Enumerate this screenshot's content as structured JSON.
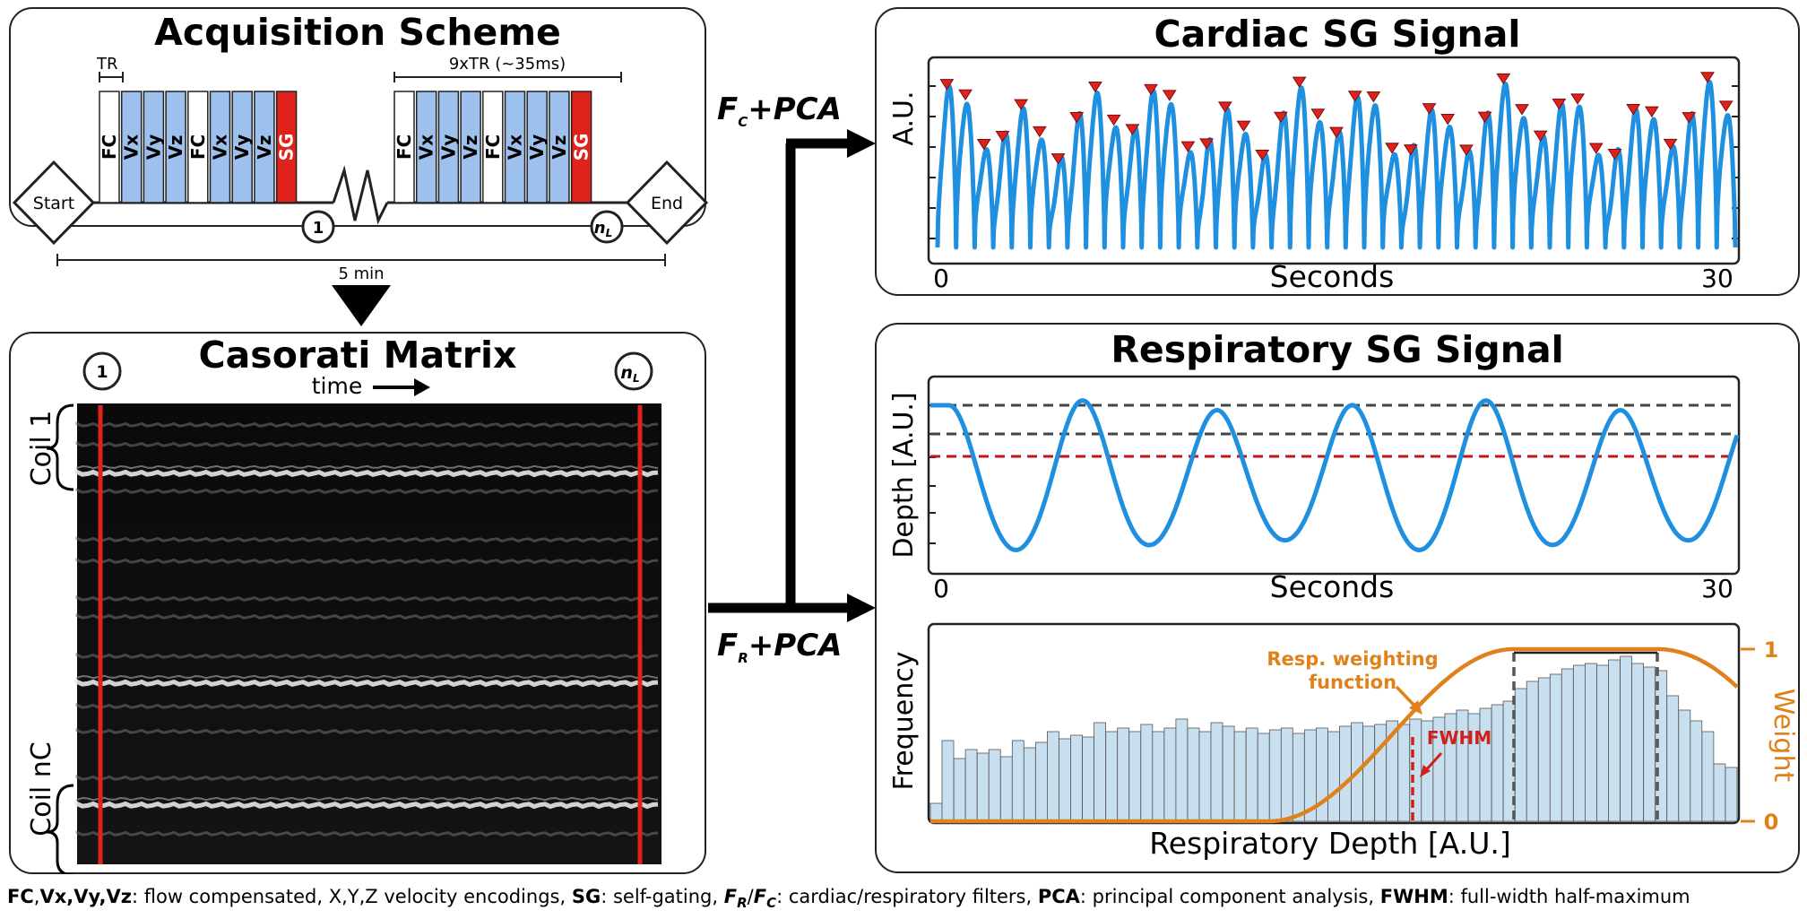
{
  "acquisition": {
    "title": "Acquisition Scheme",
    "tr_label": "TR",
    "nine_tr_label": "9xTR (~35ms)",
    "start_label": "Start",
    "end_label": "End",
    "duration_label": "5 min",
    "marker_first": "1",
    "marker_last_base": "n",
    "marker_last_sub": "L",
    "blocks_group1": [
      {
        "label": "FC",
        "kind": "fc"
      },
      {
        "label": "Vx",
        "kind": "v"
      },
      {
        "label": "Vy",
        "kind": "v"
      },
      {
        "label": "Vz",
        "kind": "v"
      },
      {
        "label": "FC",
        "kind": "fc"
      },
      {
        "label": "Vx",
        "kind": "v"
      },
      {
        "label": "Vy",
        "kind": "v"
      },
      {
        "label": "Vz",
        "kind": "v"
      },
      {
        "label": "SG",
        "kind": "sg"
      }
    ],
    "blocks_group2": [
      {
        "label": "FC",
        "kind": "fc"
      },
      {
        "label": "Vx",
        "kind": "v"
      },
      {
        "label": "Vy",
        "kind": "v"
      },
      {
        "label": "Vz",
        "kind": "v"
      },
      {
        "label": "FC",
        "kind": "fc"
      },
      {
        "label": "Vx",
        "kind": "v"
      },
      {
        "label": "Vy",
        "kind": "v"
      },
      {
        "label": "Vz",
        "kind": "v"
      },
      {
        "label": "SG",
        "kind": "sg"
      }
    ]
  },
  "casorati": {
    "title": "Casorati Matrix",
    "time_label": "time",
    "coil_first_label": "Coil 1",
    "coil_last_label": "Coil nC",
    "marker_first": "1",
    "marker_last_base": "n",
    "marker_last_sub": "L"
  },
  "arrows": {
    "cardiac_filter_base": "F",
    "cardiac_filter_sub": "C",
    "cardiac_filter_suffix": "+PCA",
    "resp_filter_base": "F",
    "resp_filter_sub": "R",
    "resp_filter_suffix": "+PCA"
  },
  "cardiac": {
    "title": "Cardiac SG Signal",
    "ylabel": "A.U.",
    "xlabel": "Seconds",
    "xmin_label": "0",
    "xmax_label": "30"
  },
  "respiratory": {
    "title": "Respiratory SG Signal",
    "ylabel": "Depth [A.U.]",
    "xlabel": "Seconds",
    "xmin_label": "0",
    "xmax_label": "30",
    "hist_ylabel": "Frequency",
    "hist_xlabel": "Respiratory Depth [A.U.]",
    "weight_label": "Weight",
    "weight_tick_top": "1",
    "weight_tick_bottom": "0",
    "annotation_line1": "Resp. weighting",
    "annotation_line2": "function",
    "fwhm_label": "FWHM"
  },
  "colors": {
    "signal_blue": "#1f8fe0",
    "vel_block": "#9dc0ec",
    "sg_block": "#e0221d",
    "red_line": "#e0221d",
    "weight_orange": "#e0821c",
    "hist_bar": "#c8dff0",
    "fwhm_red": "#d21f1a",
    "threshold_red": "#c8121a",
    "threshold_gray": "#444444"
  },
  "chart_data": [
    {
      "type": "line",
      "title": "Cardiac SG Signal",
      "xlabel": "Seconds",
      "ylabel": "A.U.",
      "xlim": [
        0,
        30
      ],
      "beats": 43,
      "series": [
        {
          "values": "oscillatory cardiac signal, 43 peak markers (red triangles)"
        }
      ]
    },
    {
      "type": "line",
      "title": "Respiratory SG Signal",
      "xlabel": "Seconds",
      "ylabel": "Depth [A.U.]",
      "xlim": [
        0,
        30
      ],
      "breaths": 6,
      "thresholds": [
        "gray dashed",
        "gray dashed",
        "red dashed"
      ]
    },
    {
      "type": "bar",
      "xlabel": "Respiratory Depth [A.U.]",
      "ylabel": "Frequency",
      "y2label": "Weight",
      "y2lim": [
        0,
        1
      ],
      "values": [
        0.1,
        0.45,
        0.35,
        0.4,
        0.38,
        0.4,
        0.36,
        0.45,
        0.41,
        0.44,
        0.5,
        0.46,
        0.48,
        0.47,
        0.55,
        0.5,
        0.52,
        0.5,
        0.54,
        0.5,
        0.52,
        0.57,
        0.52,
        0.5,
        0.55,
        0.53,
        0.5,
        0.52,
        0.49,
        0.51,
        0.52,
        0.49,
        0.51,
        0.52,
        0.5,
        0.53,
        0.55,
        0.53,
        0.54,
        0.56,
        0.54,
        0.57,
        0.56,
        0.58,
        0.6,
        0.62,
        0.6,
        0.63,
        0.65,
        0.67,
        0.74,
        0.78,
        0.8,
        0.82,
        0.85,
        0.87,
        0.88,
        0.87,
        0.9,
        0.92,
        0.88,
        0.86,
        0.84,
        0.7,
        0.62,
        0.56,
        0.5,
        0.32,
        0.3
      ]
    }
  ],
  "caption": {
    "t1": "FC",
    "t2": ",",
    "t3": "Vx,Vy,Vz",
    "t4": ": flow compensated, X,Y,Z velocity encodings, ",
    "t5": "SG",
    "t6": ": self-gating, ",
    "fr_base": "F",
    "fr_sub": "R",
    "slash": "/",
    "fc_base": "F",
    "fc_sub": "C",
    "t7": ": cardiac/respiratory filters, ",
    "t8": "PCA",
    "t9": ": principal component analysis, ",
    "t10": "FWHM",
    "t11": ": full-width half-maximum"
  }
}
